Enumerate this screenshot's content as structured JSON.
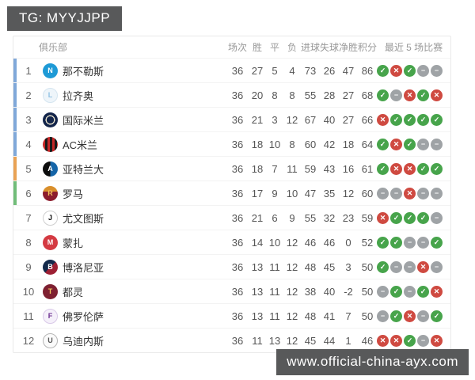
{
  "watermarks": {
    "top": "TG: MYYJJPP",
    "bottom": "www.official-china-ayx.com"
  },
  "colors": {
    "win": "#47a44b",
    "loss": "#cf4a41",
    "draw": "#9fa3a6",
    "ucl": "#7fa8d9",
    "uel": "#e9a254",
    "uecl": "#71bd79"
  },
  "result_glyphs": {
    "W": "✓",
    "L": "✕",
    "D": "−"
  },
  "table": {
    "headers": {
      "club": "俱乐部",
      "stats": [
        "场次",
        "胜",
        "平",
        "负",
        "进球",
        "失球",
        "净胜",
        "积分"
      ],
      "recent": "最近 5 场比赛"
    },
    "rows": [
      {
        "rank": 1,
        "name": "那不勒斯",
        "qual": "ucl",
        "logo": {
          "bg": "#1e9ad6",
          "fg": "#ffffff",
          "label": "N",
          "border": ""
        },
        "stats": [
          36,
          27,
          5,
          4,
          73,
          26,
          47,
          86
        ],
        "last5": [
          "W",
          "L",
          "W",
          "D",
          "D"
        ]
      },
      {
        "rank": 2,
        "name": "拉齐奥",
        "qual": "ucl",
        "logo": {
          "bg": "#eef5fa",
          "fg": "#8fc1e3",
          "label": "L",
          "border": "#d5e5f0"
        },
        "stats": [
          36,
          20,
          8,
          8,
          55,
          28,
          27,
          68
        ],
        "last5": [
          "W",
          "D",
          "L",
          "W",
          "L"
        ]
      },
      {
        "rank": 3,
        "name": "国际米兰",
        "qual": "ucl",
        "logo": {
          "bg": "radial-gradient(circle, #12244a 0 34%, #e8e2cc 35% 44%, #12244a 45%)",
          "fg": "#e8e2cc",
          "label": "",
          "border": ""
        },
        "stats": [
          36,
          21,
          3,
          12,
          67,
          40,
          27,
          66
        ],
        "last5": [
          "L",
          "W",
          "W",
          "W",
          "W"
        ]
      },
      {
        "rank": 4,
        "name": "AC米兰",
        "qual": "ucl",
        "logo": {
          "bg": "repeating-linear-gradient(90deg, #c62828 0 3px, #1a1a1a 3px 6px)",
          "fg": "#ffffff",
          "label": "",
          "border": ""
        },
        "stats": [
          36,
          18,
          10,
          8,
          60,
          42,
          18,
          64
        ],
        "last5": [
          "W",
          "L",
          "W",
          "D",
          "D"
        ]
      },
      {
        "rank": 5,
        "name": "亚特兰大",
        "qual": "uel",
        "logo": {
          "bg": "linear-gradient(90deg, #0d0d0d 0 50%, #1565a8 50%)",
          "fg": "#ffffff",
          "label": "A",
          "border": ""
        },
        "stats": [
          36,
          18,
          7,
          11,
          59,
          43,
          16,
          61
        ],
        "last5": [
          "W",
          "L",
          "L",
          "W",
          "W"
        ]
      },
      {
        "rank": 6,
        "name": "罗马",
        "qual": "uecl",
        "logo": {
          "bg": "linear-gradient(180deg, #d98f2b 0 38%, #8c1c2c 38%)",
          "fg": "#f3c35c",
          "label": "R",
          "border": ""
        },
        "stats": [
          36,
          17,
          9,
          10,
          47,
          35,
          12,
          60
        ],
        "last5": [
          "D",
          "D",
          "L",
          "D",
          "D"
        ]
      },
      {
        "rank": 7,
        "name": "尤文图斯",
        "qual": "",
        "logo": {
          "bg": "#ffffff",
          "fg": "#111111",
          "label": "J",
          "border": "#cfcfcf"
        },
        "stats": [
          36,
          21,
          6,
          9,
          55,
          32,
          23,
          59
        ],
        "last5": [
          "L",
          "W",
          "W",
          "W",
          "D"
        ]
      },
      {
        "rank": 8,
        "name": "蒙扎",
        "qual": "",
        "logo": {
          "bg": "#d43a42",
          "fg": "#ffffff",
          "label": "M",
          "border": ""
        },
        "stats": [
          36,
          14,
          10,
          12,
          46,
          46,
          0,
          52
        ],
        "last5": [
          "W",
          "W",
          "D",
          "D",
          "W"
        ]
      },
      {
        "rank": 9,
        "name": "博洛尼亚",
        "qual": "",
        "logo": {
          "bg": "linear-gradient(135deg, #13294b 0 50%, #9c1f33 50%)",
          "fg": "#ffffff",
          "label": "B",
          "border": ""
        },
        "stats": [
          36,
          13,
          11,
          12,
          48,
          45,
          3,
          50
        ],
        "last5": [
          "W",
          "D",
          "D",
          "L",
          "D"
        ]
      },
      {
        "rank": 10,
        "name": "都灵",
        "qual": "",
        "logo": {
          "bg": "#7e2031",
          "fg": "#f0c75e",
          "label": "T",
          "border": ""
        },
        "stats": [
          36,
          13,
          11,
          12,
          38,
          40,
          -2,
          50
        ],
        "last5": [
          "D",
          "W",
          "D",
          "W",
          "L"
        ]
      },
      {
        "rank": 11,
        "name": "佛罗伦萨",
        "qual": "",
        "logo": {
          "bg": "#f5f0fa",
          "fg": "#6a2d8f",
          "label": "F",
          "border": "#d9c9e8"
        },
        "stats": [
          36,
          13,
          11,
          12,
          48,
          41,
          7,
          50
        ],
        "last5": [
          "D",
          "W",
          "L",
          "D",
          "W"
        ]
      },
      {
        "rank": 12,
        "name": "乌迪内斯",
        "qual": "",
        "logo": {
          "bg": "#fafafa",
          "fg": "#555555",
          "label": "U",
          "border": "#b5b5b5"
        },
        "stats": [
          36,
          11,
          13,
          12,
          45,
          44,
          1,
          46
        ],
        "last5": [
          "L",
          "L",
          "W",
          "D",
          "L"
        ]
      }
    ]
  }
}
